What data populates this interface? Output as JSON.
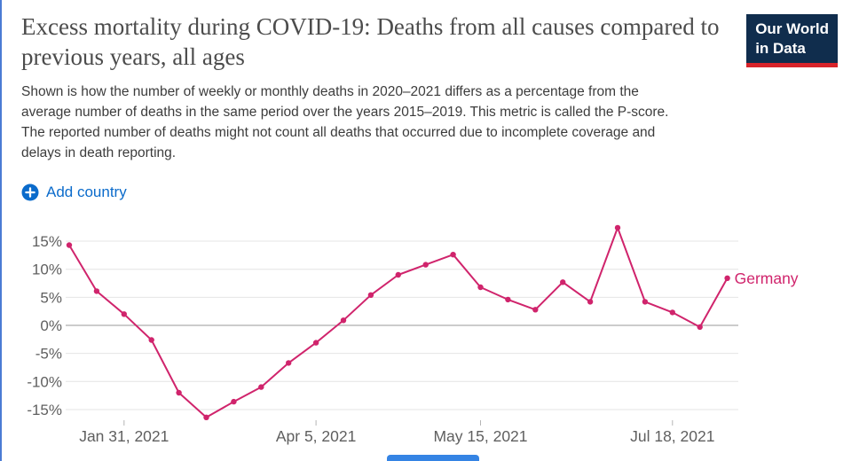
{
  "header": {
    "title": "Excess mortality during COVID-19: Deaths from all causes compared to previous years, all ages",
    "subtitle": "Shown is how the number of weekly or monthly deaths in 2020–2021 differs as a percentage from the average number of deaths in the same period over the years 2015–2019. This metric is called the P-score. The reported number of deaths might not count all deaths that occurred due to incomplete coverage and delays in death reporting."
  },
  "logo": {
    "line1": "Our World",
    "line2": "in Data"
  },
  "controls": {
    "add_country_label": "Add country"
  },
  "colors": {
    "accent_blue": "#0b6bcb",
    "series_pink": "#d0246c",
    "logo_navy": "#102d4d",
    "logo_red": "#d8232a",
    "axis_text": "#5f5f5f",
    "gridline": "#e4e4e4",
    "zero_line": "#9a9a9a"
  },
  "chart_data": {
    "type": "line",
    "title": "Excess mortality during COVID-19: Deaths from all causes compared to previous years, all ages",
    "y_ticks": [
      15,
      10,
      5,
      0,
      -5,
      -10,
      -15
    ],
    "y_tick_suffix": "%",
    "ylim": [
      -17.5,
      18.5
    ],
    "grid": true,
    "legend_position": "end-of-line",
    "x_ticks": [
      {
        "label": "Jan 31, 2021",
        "index": 2
      },
      {
        "label": "Apr 5, 2021",
        "index": 9
      },
      {
        "label": "May 15, 2021",
        "index": 15
      },
      {
        "label": "Jul 18, 2021",
        "index": 22
      }
    ],
    "series": [
      {
        "name": "Germany",
        "color": "#d0246c",
        "values": [
          14.3,
          6.1,
          2.0,
          -2.6,
          -12.0,
          -16.4,
          -13.6,
          -11.0,
          -6.7,
          -3.1,
          0.9,
          5.4,
          9.0,
          10.8,
          12.6,
          6.8,
          4.6,
          2.8,
          7.7,
          4.2,
          17.4,
          4.2,
          2.3,
          -0.3,
          8.4
        ]
      }
    ]
  }
}
